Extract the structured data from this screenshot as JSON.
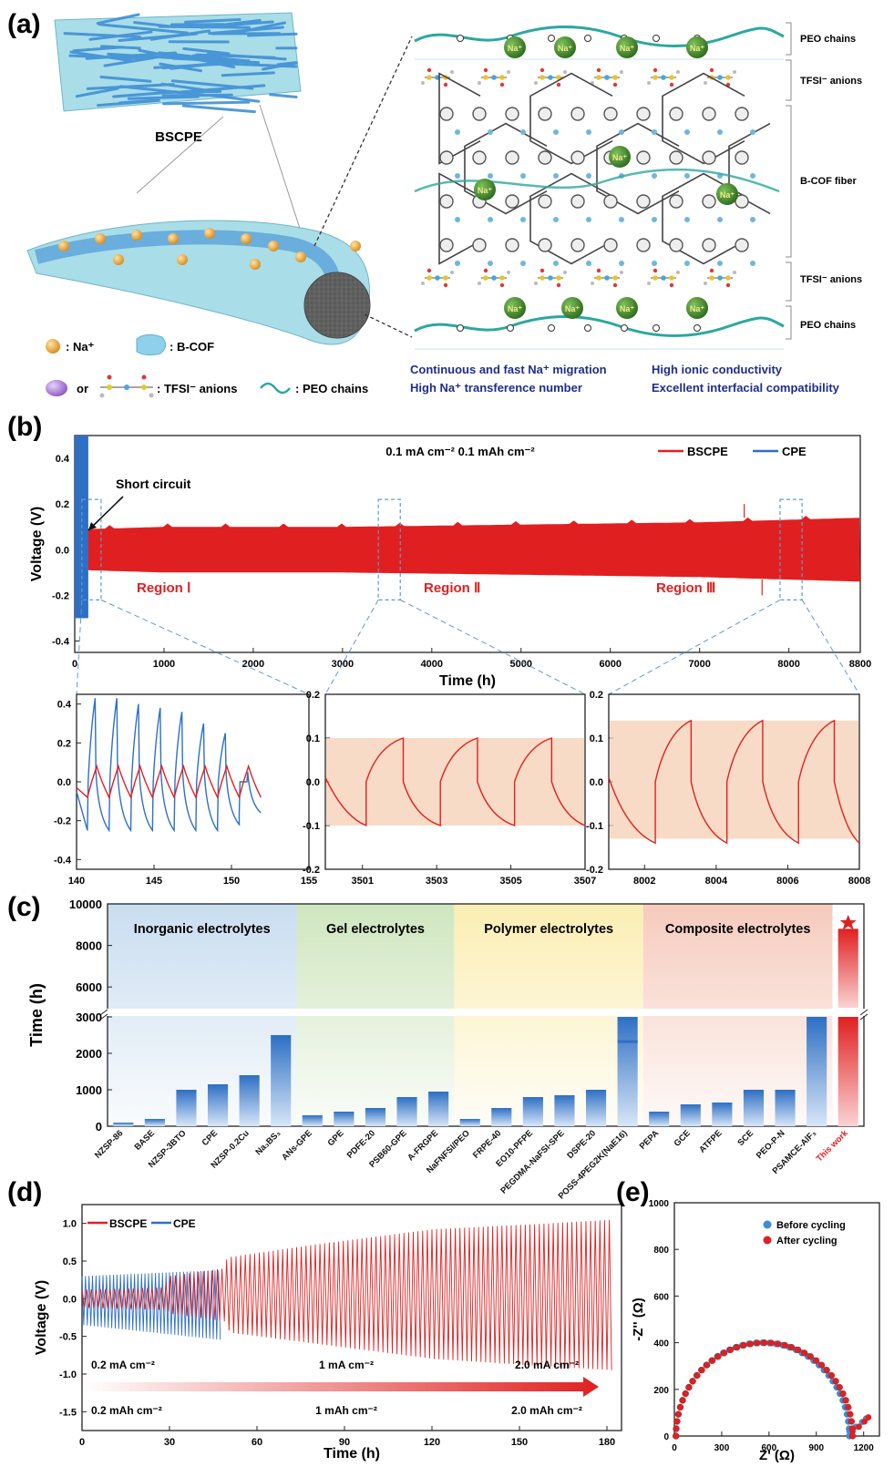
{
  "panel_labels": {
    "a": "(a)",
    "b": "(b)",
    "c": "(c)",
    "d": "(d)",
    "e": "(e)"
  },
  "panel_a": {
    "membrane_label": "BSCPE",
    "legend": {
      "na": ": Na⁺",
      "bcof": ": B-COF",
      "or": "or",
      "tfsi": ": TFSI⁻ anions",
      "peo": ": PEO chains"
    },
    "ion_label": "Na⁺",
    "structure_labels": {
      "peo_top": "PEO chains",
      "tfsi_top": "TFSI⁻ anions",
      "bcof_fiber": "B-COF fiber",
      "tfsi_bottom": "TFSI⁻ anions",
      "peo_bottom": "PEO chains"
    },
    "features": [
      "Continuous and fast Na⁺ migration",
      "High Na⁺ transference number",
      "High ionic conductivity",
      "Excellent interfacial compatibility"
    ],
    "colors": {
      "fiber": "#3f8fd6",
      "bcof": "#8fd0ea",
      "na": "#e0a23a",
      "na_ion": "#3d8a2a",
      "peo": "#2ba89e",
      "tfsi": "#b28fd6",
      "feature_text": "#1f2d8a"
    }
  },
  "chart_data": [
    {
      "id": "b_main",
      "type": "line",
      "condition": "0.1 mA cm⁻²  0.1 mAh cm⁻²",
      "xlabel": "Time (h)",
      "ylabel": "Voltage (V)",
      "xlim": [
        0,
        8800
      ],
      "ylim": [
        -0.45,
        0.5
      ],
      "xticks": [
        0,
        1000,
        2000,
        3000,
        4000,
        5000,
        6000,
        7000,
        8000,
        8800
      ],
      "yticks": [
        -0.4,
        -0.2,
        0.0,
        0.2,
        0.4
      ],
      "series": [
        {
          "name": "BSCPE",
          "color": "#e02020",
          "envelope_x": [
            140,
            1000,
            3000,
            5000,
            7000,
            8800
          ],
          "upper": [
            0.09,
            0.1,
            0.1,
            0.11,
            0.12,
            0.14
          ],
          "lower": [
            -0.09,
            -0.1,
            -0.1,
            -0.11,
            -0.12,
            -0.14
          ]
        },
        {
          "name": "CPE",
          "color": "#2e6fc4",
          "x_end": 152,
          "upper": 0.5,
          "lower": -0.3
        }
      ],
      "annotations": [
        "Short circuit",
        "Region Ⅰ",
        "Region Ⅱ",
        "Region Ⅲ"
      ],
      "region_x": [
        [
          140,
          155
        ],
        [
          3501,
          3507
        ],
        [
          8001,
          8008
        ]
      ]
    },
    {
      "id": "b_inset1",
      "type": "line",
      "xlim": [
        140,
        155
      ],
      "ylim": [
        -0.45,
        0.45
      ],
      "xticks": [
        140,
        145,
        150,
        155
      ],
      "yticks": [
        -0.4,
        -0.2,
        0.0,
        0.2,
        0.4
      ],
      "series": [
        {
          "name": "BSCPE",
          "color": "#e02020",
          "period": 1.4,
          "start": 140.7,
          "amplitude": 0.08
        },
        {
          "name": "CPE",
          "color": "#2e6fc4",
          "period": 1.4,
          "start": 140.7,
          "peaks": [
            0.43,
            0.43,
            0.4,
            0.38,
            0.36,
            0.3,
            0.25,
            0.0
          ],
          "troughs": [
            -0.25,
            -0.25,
            -0.25,
            -0.25,
            -0.25,
            -0.25,
            -0.22,
            -0.16
          ]
        }
      ]
    },
    {
      "id": "b_inset2",
      "type": "line",
      "xlim": [
        3500,
        3507
      ],
      "ylim": [
        -0.2,
        0.2
      ],
      "xticks": [
        3501,
        3503,
        3505,
        3507
      ],
      "yticks": [
        -0.2,
        -0.1,
        0.0,
        0.1,
        0.2
      ],
      "band": [
        -0.1,
        0.1
      ],
      "series": [
        {
          "name": "BSCPE",
          "color": "#e02020",
          "peaks_x": [
            3502.1,
            3504.1,
            3506.1
          ],
          "amplitude": 0.1
        }
      ]
    },
    {
      "id": "b_inset3",
      "type": "line",
      "xlim": [
        8001,
        8008
      ],
      "ylim": [
        -0.2,
        0.2
      ],
      "xticks": [
        8002,
        8004,
        8006,
        8008
      ],
      "yticks": [
        -0.2,
        -0.1,
        0.0,
        0.1,
        0.2
      ],
      "band": [
        -0.13,
        0.14
      ],
      "series": [
        {
          "name": "BSCPE",
          "color": "#e02020",
          "peaks_x": [
            8003.3,
            8005.3,
            8007.3
          ],
          "amplitude": 0.14
        }
      ]
    },
    {
      "id": "c",
      "type": "bar",
      "ylabel": "Time (h)",
      "yticks": [
        0,
        1000,
        2000,
        3000,
        6000,
        8000,
        10000
      ],
      "groups": [
        "Inorganic electrolytes",
        "Gel electrolytes",
        "Polymer electrolytes",
        "Composite electrolytes"
      ],
      "group_colors": [
        "#c9ddf0",
        "#cfe6bf",
        "#fbeeb3",
        "#f6cbbd"
      ],
      "categories": [
        "NZSP-86",
        "BASE",
        "NZSP-3BTO",
        "CPE",
        "NZSP-0.2Cu",
        "Na₃BS₃",
        "ANs-GPE",
        "GPE",
        "PDFE-20",
        "PSB60-GPE",
        "A-FRGPE",
        "NaFNFSI/PEO",
        "FRPE-40",
        "EO10-PFPE",
        "PEGDMA-NaFSI-SPE",
        "DSPE-20",
        "POSS-4PEG2K(NaE16)",
        "PEPA",
        "GCE",
        "ATFPE",
        "SCE",
        "PEO-P-N",
        "PSAMCE-AlF₃",
        "This work"
      ],
      "values": [
        100,
        200,
        1000,
        1150,
        1400,
        2500,
        300,
        400,
        500,
        800,
        950,
        200,
        500,
        800,
        850,
        1000,
        3350,
        400,
        600,
        650,
        1000,
        1000,
        3000,
        8800
      ],
      "group_of": [
        0,
        0,
        0,
        0,
        0,
        0,
        1,
        1,
        1,
        1,
        1,
        2,
        2,
        2,
        2,
        2,
        2,
        3,
        3,
        3,
        3,
        3,
        3,
        3
      ],
      "highlight_label": "This work",
      "highlight_color": "#e02020"
    },
    {
      "id": "d",
      "type": "line",
      "xlabel": "Time (h)",
      "ylabel": "Voltage (V)",
      "xlim": [
        0,
        185
      ],
      "ylim": [
        -1.75,
        1.25
      ],
      "xticks": [
        0,
        30,
        60,
        90,
        120,
        150,
        180
      ],
      "yticks": [
        -1.5,
        -1.0,
        -0.5,
        0.0,
        0.5,
        1.0
      ],
      "series": [
        {
          "name": "BSCPE",
          "color": "#e02020",
          "envelope_x": [
            0,
            28,
            30,
            48,
            50,
            80,
            120,
            160,
            182
          ],
          "upper": [
            0.12,
            0.15,
            0.3,
            0.4,
            0.55,
            0.72,
            0.92,
            1.0,
            1.05
          ],
          "lower": [
            -0.12,
            -0.15,
            -0.2,
            -0.3,
            -0.45,
            -0.6,
            -0.8,
            -0.9,
            -0.95
          ]
        },
        {
          "name": "CPE",
          "color": "#2e6fc4",
          "x_end": 48,
          "upper": [
            0.3,
            0.38
          ],
          "lower": [
            -0.35,
            -0.55
          ]
        }
      ],
      "rates": [
        {
          "current": "0.2 mA cm⁻²",
          "capacity": "0.2 mAh cm⁻²"
        },
        {
          "current": "1 mA cm⁻²",
          "capacity": "1 mAh cm⁻²"
        },
        {
          "current": "2.0 mA cm⁻²",
          "capacity": "2.0 mAh cm⁻²"
        }
      ]
    },
    {
      "id": "e",
      "type": "scatter",
      "xlabel": "Z' (Ω)",
      "ylabel": "-Z'' (Ω)",
      "xlim": [
        0,
        1300
      ],
      "ylim": [
        0,
        1000
      ],
      "xticks": [
        0,
        300,
        600,
        900,
        1200
      ],
      "yticks": [
        0,
        200,
        400,
        600,
        800,
        1000
      ],
      "series": [
        {
          "name": "Before cycling",
          "color": "#3a8fd8",
          "arc": [
            10,
            1110,
            400
          ],
          "tail": [
            [
              1110,
              20
            ],
            [
              1150,
              40
            ],
            [
              1190,
              60
            ],
            [
              1215,
              75
            ]
          ]
        },
        {
          "name": "After cycling",
          "color": "#e02020",
          "arc": [
            10,
            1130,
            400
          ],
          "tail": [
            [
              1130,
              20
            ],
            [
              1170,
              40
            ],
            [
              1205,
              62
            ],
            [
              1230,
              80
            ]
          ]
        }
      ]
    }
  ]
}
